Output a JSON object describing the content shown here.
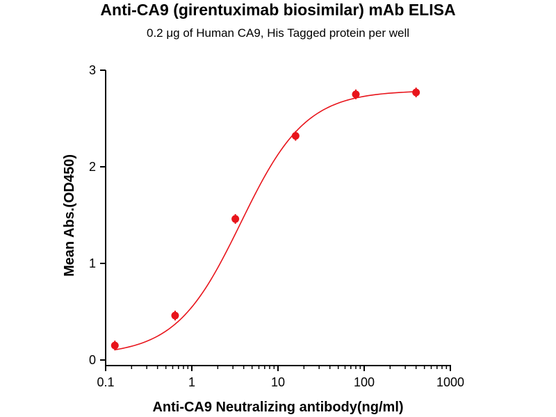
{
  "chart_data": {
    "type": "scatter",
    "title": "Anti-CA9 (girentuximab biosimilar) mAb ELISA",
    "subtitle": "0.2 μg of Human CA9, His Tagged protein per well",
    "xlabel": "Anti-CA9 Neutralizing antibody(ng/ml)",
    "ylabel": "Mean Abs.(OD450)",
    "xscale": "log",
    "xlim": [
      0.1,
      1000
    ],
    "ylim": [
      0,
      3
    ],
    "xticks": [
      {
        "value": 0.1,
        "label": "0.1"
      },
      {
        "value": 1,
        "label": "1"
      },
      {
        "value": 10,
        "label": "10"
      },
      {
        "value": 100,
        "label": "100"
      },
      {
        "value": 1000,
        "label": "1000"
      }
    ],
    "yticks": [
      {
        "value": 0,
        "label": "0"
      },
      {
        "value": 1,
        "label": "1"
      },
      {
        "value": 2,
        "label": "2"
      },
      {
        "value": 3,
        "label": "3"
      }
    ],
    "grid": false,
    "series": [
      {
        "color": "#e8141b",
        "points": [
          {
            "x": 0.128,
            "y": 0.15
          },
          {
            "x": 0.64,
            "y": 0.46
          },
          {
            "x": 3.2,
            "y": 1.46
          },
          {
            "x": 16,
            "y": 2.32
          },
          {
            "x": 80,
            "y": 2.75
          },
          {
            "x": 400,
            "y": 2.77
          }
        ],
        "fit": {
          "model": "4PL",
          "bottom": 0.05,
          "top": 2.79,
          "ec50": 3.7,
          "hill": 1.15
        }
      }
    ]
  }
}
